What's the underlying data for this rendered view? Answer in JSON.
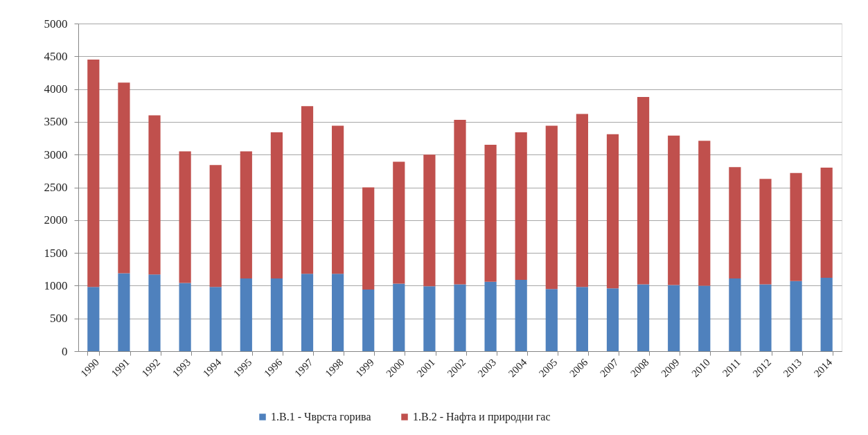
{
  "chart_data": {
    "type": "bar",
    "stacked": true,
    "categories": [
      "1990",
      "1991",
      "1992",
      "1993",
      "1994",
      "1995",
      "1996",
      "1997",
      "1998",
      "1999",
      "2000",
      "2001",
      "2002",
      "2003",
      "2004",
      "2005",
      "2006",
      "2007",
      "2008",
      "2009",
      "2010",
      "2011",
      "2012",
      "2013",
      "2014"
    ],
    "series": [
      {
        "name": "1.B.1 - Чврста горива",
        "color": "#4f81bd",
        "values": [
          980,
          1190,
          1170,
          1040,
          980,
          1110,
          1110,
          1180,
          1180,
          940,
          1030,
          990,
          1020,
          1060,
          1090,
          950,
          980,
          960,
          1020,
          1010,
          1000,
          1110,
          1020,
          1070,
          1120
        ]
      },
      {
        "name": "1.B.2 - Нафта и природни гас",
        "color": "#c0504d",
        "values": [
          3470,
          2910,
          2430,
          2010,
          1860,
          1940,
          2230,
          2560,
          2260,
          1560,
          1860,
          2010,
          2510,
          2090,
          2250,
          2490,
          2640,
          2350,
          2860,
          2280,
          2210,
          1700,
          1610,
          1650,
          1680
        ]
      }
    ],
    "ylim": [
      0,
      5000
    ],
    "yticks": [
      0,
      500,
      1000,
      1500,
      2000,
      2500,
      3000,
      3500,
      4000,
      4500,
      5000
    ],
    "grid": "y",
    "legend": "bottom"
  }
}
